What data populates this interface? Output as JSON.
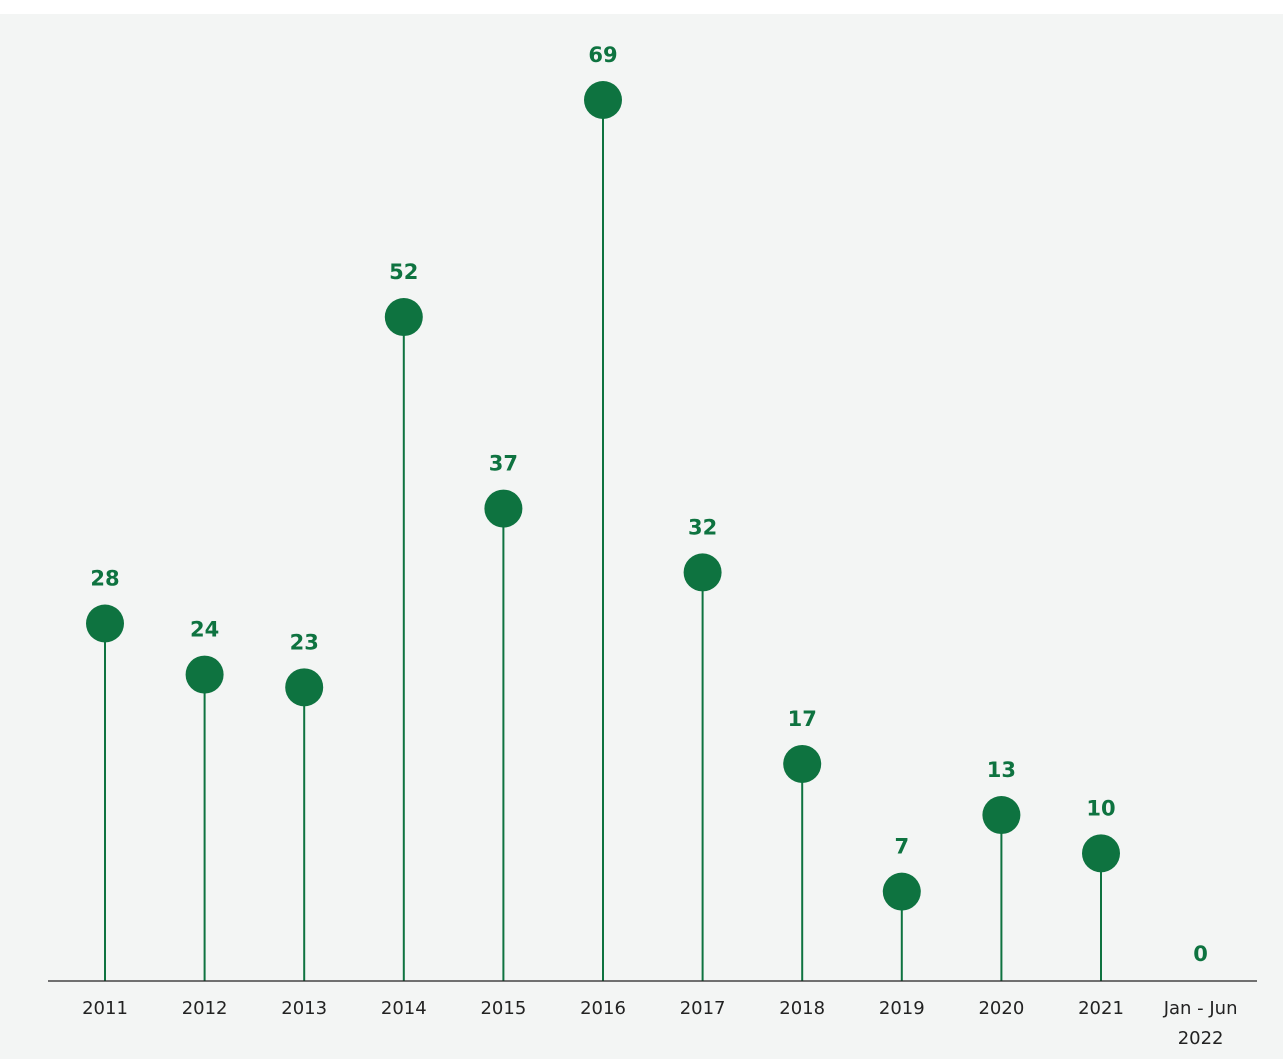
{
  "chart_data": {
    "type": "lollipop",
    "categories": [
      "2011",
      "2012",
      "2013",
      "2014",
      "2015",
      "2016",
      "2017",
      "2018",
      "2019",
      "2020",
      "2021",
      "Jan - Jun 2022"
    ],
    "category_lines": [
      [
        "2011"
      ],
      [
        "2012"
      ],
      [
        "2013"
      ],
      [
        "2014"
      ],
      [
        "2015"
      ],
      [
        "2016"
      ],
      [
        "2017"
      ],
      [
        "2018"
      ],
      [
        "2019"
      ],
      [
        "2020"
      ],
      [
        "2021"
      ],
      [
        "Jan - Jun",
        "2022"
      ]
    ],
    "values": [
      28,
      24,
      23,
      52,
      37,
      69,
      32,
      17,
      7,
      13,
      10,
      0
    ],
    "title": "",
    "xlabel": "",
    "ylabel": "",
    "ylim": [
      0,
      69
    ],
    "grid": false,
    "legend": "none",
    "colors": {
      "marker": "#0e7340",
      "stem": "#0e7340",
      "label": "#0e7340",
      "axis": "#222222",
      "background": "#f3f5f4"
    }
  }
}
